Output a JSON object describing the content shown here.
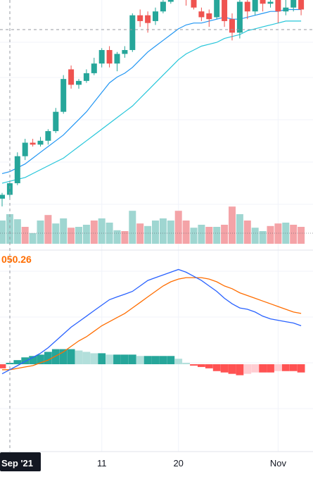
{
  "theme": {
    "up": "#26a69a",
    "down": "#ef5350",
    "vol_up": "#9fd6d1",
    "vol_down": "#f4a3a7",
    "hist_pos_strong": "#26a69a",
    "hist_pos_weak": "#b2dfdb",
    "hist_neg_strong": "#ff5252",
    "hist_neg_weak": "#ffcdd2",
    "ma_fast": "#2196f3",
    "ma_slow": "#26c6da",
    "macd_line": "#2962ff",
    "signal_line": "#ff6d00",
    "grid": "#f0f3fa",
    "crosshair": "#9598a1",
    "axis_text": "#131722",
    "label_bg": "#131722"
  },
  "macd_value_label": "050.26",
  "x_axis": {
    "crosshair_label": "Sep '21",
    "ticks": [
      {
        "label": "11",
        "index": 13
      },
      {
        "label": "20",
        "index": 23
      },
      {
        "label": "Nov",
        "index": 36
      }
    ]
  },
  "chart_data": {
    "type": "candlestick",
    "price_range": [
      0,
      100
    ],
    "candles": [
      {
        "o": 0,
        "h": 3,
        "l": -4,
        "c": 2
      },
      {
        "o": 2,
        "h": 9,
        "l": 0,
        "c": 8
      },
      {
        "o": 8,
        "h": 24,
        "l": 7,
        "c": 22
      },
      {
        "o": 22,
        "h": 31,
        "l": 20,
        "c": 29
      },
      {
        "o": 29,
        "h": 31,
        "l": 27,
        "c": 28
      },
      {
        "o": 28,
        "h": 32,
        "l": 27,
        "c": 30
      },
      {
        "o": 30,
        "h": 36,
        "l": 28,
        "c": 35
      },
      {
        "o": 35,
        "h": 47,
        "l": 34,
        "c": 45
      },
      {
        "o": 45,
        "h": 64,
        "l": 44,
        "c": 62
      },
      {
        "o": 67,
        "h": 69,
        "l": 57,
        "c": 59
      },
      {
        "o": 59,
        "h": 62,
        "l": 57,
        "c": 61
      },
      {
        "o": 61,
        "h": 67,
        "l": 60,
        "c": 65
      },
      {
        "o": 65,
        "h": 73,
        "l": 64,
        "c": 70
      },
      {
        "o": 70,
        "h": 78,
        "l": 68,
        "c": 77
      },
      {
        "o": 77,
        "h": 79,
        "l": 68,
        "c": 70
      },
      {
        "o": 70,
        "h": 76,
        "l": 66,
        "c": 75
      },
      {
        "o": 75,
        "h": 79,
        "l": 73,
        "c": 77
      },
      {
        "o": 77,
        "h": 96,
        "l": 76,
        "c": 95
      },
      {
        "o": 95,
        "h": 98,
        "l": 89,
        "c": 92
      },
      {
        "o": 95,
        "h": 97,
        "l": 86,
        "c": 91
      },
      {
        "o": 92,
        "h": 99,
        "l": 90,
        "c": 97
      },
      {
        "o": 97,
        "h": 103,
        "l": 96,
        "c": 102
      },
      {
        "o": 102,
        "h": 114,
        "l": 101,
        "c": 112
      },
      {
        "o": 112,
        "h": 118,
        "l": 111,
        "c": 117
      },
      {
        "o": 117,
        "h": 118,
        "l": 100,
        "c": 103
      },
      {
        "o": 103,
        "h": 106,
        "l": 98,
        "c": 99
      },
      {
        "o": 97,
        "h": 99,
        "l": 92,
        "c": 94
      },
      {
        "o": 96,
        "h": 98,
        "l": 89,
        "c": 93
      },
      {
        "o": 94,
        "h": 106,
        "l": 93,
        "c": 105
      },
      {
        "o": 105,
        "h": 106,
        "l": 89,
        "c": 92
      },
      {
        "o": 93,
        "h": 96,
        "l": 82,
        "c": 86
      },
      {
        "o": 86,
        "h": 104,
        "l": 83,
        "c": 102
      },
      {
        "o": 102,
        "h": 104,
        "l": 93,
        "c": 97
      },
      {
        "o": 97,
        "h": 104,
        "l": 95,
        "c": 103
      },
      {
        "o": 103,
        "h": 104,
        "l": 97,
        "c": 101
      },
      {
        "o": 101,
        "h": 107,
        "l": 99,
        "c": 102
      },
      {
        "o": 104,
        "h": 108,
        "l": 91,
        "c": 97
      },
      {
        "o": 97,
        "h": 105,
        "l": 95,
        "c": 99
      },
      {
        "o": 99,
        "h": 104,
        "l": 97,
        "c": 103
      },
      {
        "o": 103,
        "h": 108,
        "l": 95,
        "c": 98
      }
    ],
    "ma_fast": [
      13,
      14,
      16,
      18,
      21,
      24,
      27,
      30,
      33,
      37,
      41,
      45,
      50,
      55,
      60,
      63,
      65,
      68,
      72,
      76,
      79,
      82,
      85,
      88,
      90,
      91,
      91,
      92,
      93,
      94,
      93,
      93,
      94,
      95,
      96,
      97,
      97,
      98,
      98,
      98
    ],
    "ma_slow": [
      8,
      9,
      10,
      11,
      13,
      15,
      17,
      19,
      21,
      24,
      27,
      30,
      33,
      36,
      39,
      42,
      45,
      48,
      52,
      56,
      60,
      64,
      68,
      72,
      75,
      77,
      79,
      80,
      81,
      83,
      84,
      85,
      87,
      88,
      89,
      90,
      91,
      92,
      92,
      92
    ],
    "volume": [
      {
        "v": 55,
        "up": true
      },
      {
        "v": 70,
        "up": true
      },
      {
        "v": 58,
        "up": true
      },
      {
        "v": 40,
        "up": false
      },
      {
        "v": 25,
        "up": true
      },
      {
        "v": 55,
        "up": true
      },
      {
        "v": 68,
        "up": false
      },
      {
        "v": 48,
        "up": true
      },
      {
        "v": 60,
        "up": true
      },
      {
        "v": 38,
        "up": false
      },
      {
        "v": 40,
        "up": true
      },
      {
        "v": 45,
        "up": true
      },
      {
        "v": 55,
        "up": false
      },
      {
        "v": 60,
        "up": true
      },
      {
        "v": 50,
        "up": true
      },
      {
        "v": 32,
        "up": true
      },
      {
        "v": 30,
        "up": false
      },
      {
        "v": 78,
        "up": true
      },
      {
        "v": 48,
        "up": false
      },
      {
        "v": 42,
        "up": true
      },
      {
        "v": 55,
        "up": true
      },
      {
        "v": 60,
        "up": true
      },
      {
        "v": 55,
        "up": true
      },
      {
        "v": 78,
        "up": false
      },
      {
        "v": 55,
        "up": false
      },
      {
        "v": 38,
        "up": true
      },
      {
        "v": 45,
        "up": true
      },
      {
        "v": 40,
        "up": false
      },
      {
        "v": 40,
        "up": true
      },
      {
        "v": 45,
        "up": false
      },
      {
        "v": 88,
        "up": false
      },
      {
        "v": 70,
        "up": true
      },
      {
        "v": 55,
        "up": false
      },
      {
        "v": 38,
        "up": true
      },
      {
        "v": 30,
        "up": true
      },
      {
        "v": 42,
        "up": false
      },
      {
        "v": 48,
        "up": false
      },
      {
        "v": 50,
        "up": true
      },
      {
        "v": 45,
        "up": false
      },
      {
        "v": 40,
        "up": false
      }
    ],
    "macd": [
      -7,
      -4,
      -1,
      2,
      5,
      8,
      12,
      17,
      22,
      27,
      31,
      35,
      39,
      43,
      47,
      49,
      51,
      53,
      57,
      61,
      63,
      65,
      67,
      69,
      67,
      64,
      61,
      57,
      53,
      48,
      44,
      41,
      40,
      38,
      35,
      33,
      32,
      31,
      30,
      28
    ],
    "signal": [
      -4,
      -4,
      -3,
      -2,
      -1,
      1,
      3,
      6,
      9,
      13,
      17,
      20,
      24,
      28,
      31,
      34,
      37,
      41,
      45,
      49,
      53,
      57,
      60,
      62,
      63,
      63,
      63,
      62,
      60,
      57,
      55,
      52,
      50,
      48,
      46,
      44,
      42,
      40,
      38,
      37
    ],
    "histogram": [
      -3,
      1,
      3,
      5,
      6,
      7,
      9,
      11,
      11,
      11,
      10,
      9,
      8,
      8,
      7,
      7,
      7,
      7,
      6,
      6,
      6,
      6,
      6,
      4,
      1,
      -1,
      -2,
      -3,
      -5,
      -6,
      -7,
      -8,
      -7,
      -6,
      -6,
      -6,
      -5,
      -5,
      -5,
      -6
    ]
  }
}
